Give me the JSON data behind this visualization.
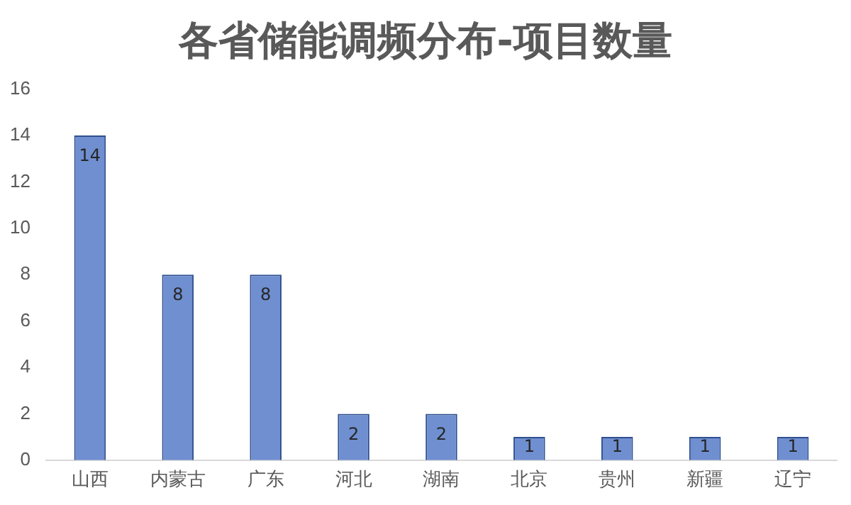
{
  "chart_data": {
    "type": "bar",
    "title": "各省储能调频分布-项目数量",
    "categories": [
      "山西",
      "内蒙古",
      "广东",
      "河北",
      "湖南",
      "北京",
      "贵州",
      "新疆",
      "辽宁"
    ],
    "values": [
      14,
      8,
      8,
      2,
      2,
      1,
      1,
      1,
      1
    ],
    "color": "#6f8fd0",
    "ylim": [
      0,
      16
    ],
    "yticks": [
      0,
      2,
      4,
      6,
      8,
      10,
      12,
      14,
      16
    ],
    "grid": false,
    "legend": false,
    "data_labels": true
  }
}
